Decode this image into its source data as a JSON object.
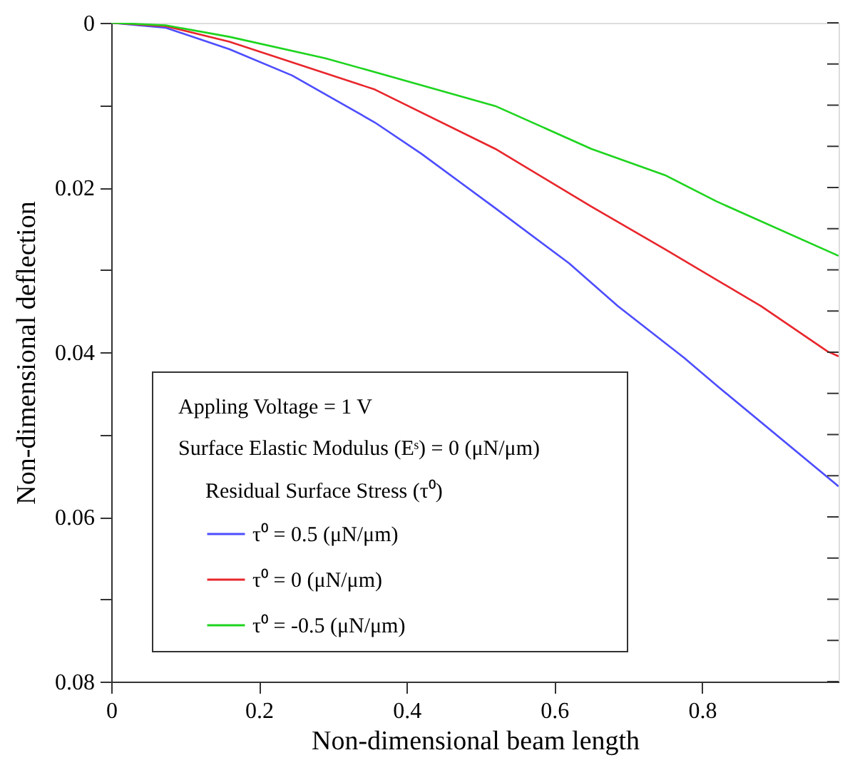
{
  "chart_data": {
    "type": "line",
    "xlabel": "Non-dimensional beam length",
    "ylabel": "Non-dimensional deflection",
    "xlim": [
      0,
      0.985
    ],
    "xticks": [
      0,
      0.2,
      0.4,
      0.6,
      0.8
    ],
    "ylim": [
      0.08,
      0
    ],
    "yticks": [
      0,
      {
        "value": 0.005,
        "label": null
      },
      {
        "value": 0.01,
        "label": null
      },
      {
        "value": 0.015,
        "label": null
      },
      0.02,
      {
        "value": 0.025,
        "label": null
      },
      {
        "value": 0.03,
        "label": null
      },
      {
        "value": 0.035,
        "label": null
      },
      0.04,
      {
        "value": 0.045,
        "label": null
      },
      {
        "value": 0.05,
        "label": null
      },
      {
        "value": 0.055,
        "label": null
      },
      0.06,
      {
        "value": 0.065,
        "label": null
      },
      {
        "value": 0.07,
        "label": null
      },
      {
        "value": 0.075,
        "label": null
      },
      0.08
    ],
    "grid": false,
    "legend": "bottom left",
    "marker": "none",
    "line_style": "solid",
    "legend_title": "Residual Surface Stress (τ⁰)",
    "annotations": [
      "Appling Voltage = 1 V",
      "Surface Elastic Modulus (Eˢ) = 0 (μN/μm)"
    ],
    "series": [
      {
        "name": "τ⁰ = 0.5 (μN/μm)",
        "color": "#4d4dff",
        "x": [
          0,
          0.074,
          0.16,
          0.245,
          0.357,
          0.42,
          0.52,
          0.62,
          0.686,
          0.776,
          0.822,
          0.985
        ],
        "values": [
          0,
          0.0006,
          0.0032,
          0.0064,
          0.0121,
          0.0159,
          0.0225,
          0.0292,
          0.0344,
          0.0407,
          0.0442,
          0.0563
        ]
      },
      {
        "name": "τ⁰ = 0 (μN/μm)",
        "color": "#e8262c",
        "x": [
          0,
          0.074,
          0.16,
          0.357,
          0.52,
          0.65,
          0.75,
          0.88,
          0.97,
          0.985
        ],
        "values": [
          0,
          0.0004,
          0.0023,
          0.0081,
          0.0153,
          0.0223,
          0.0275,
          0.0344,
          0.0399,
          0.0405
        ]
      },
      {
        "name": "τ⁰ = -0.5 (μN/μm)",
        "color": "#1ed41e",
        "x": [
          0,
          0.074,
          0.16,
          0.29,
          0.52,
          0.65,
          0.75,
          0.82,
          0.985
        ],
        "values": [
          0,
          0.0003,
          0.0017,
          0.0043,
          0.0101,
          0.0153,
          0.0185,
          0.0217,
          0.0283
        ]
      }
    ]
  }
}
